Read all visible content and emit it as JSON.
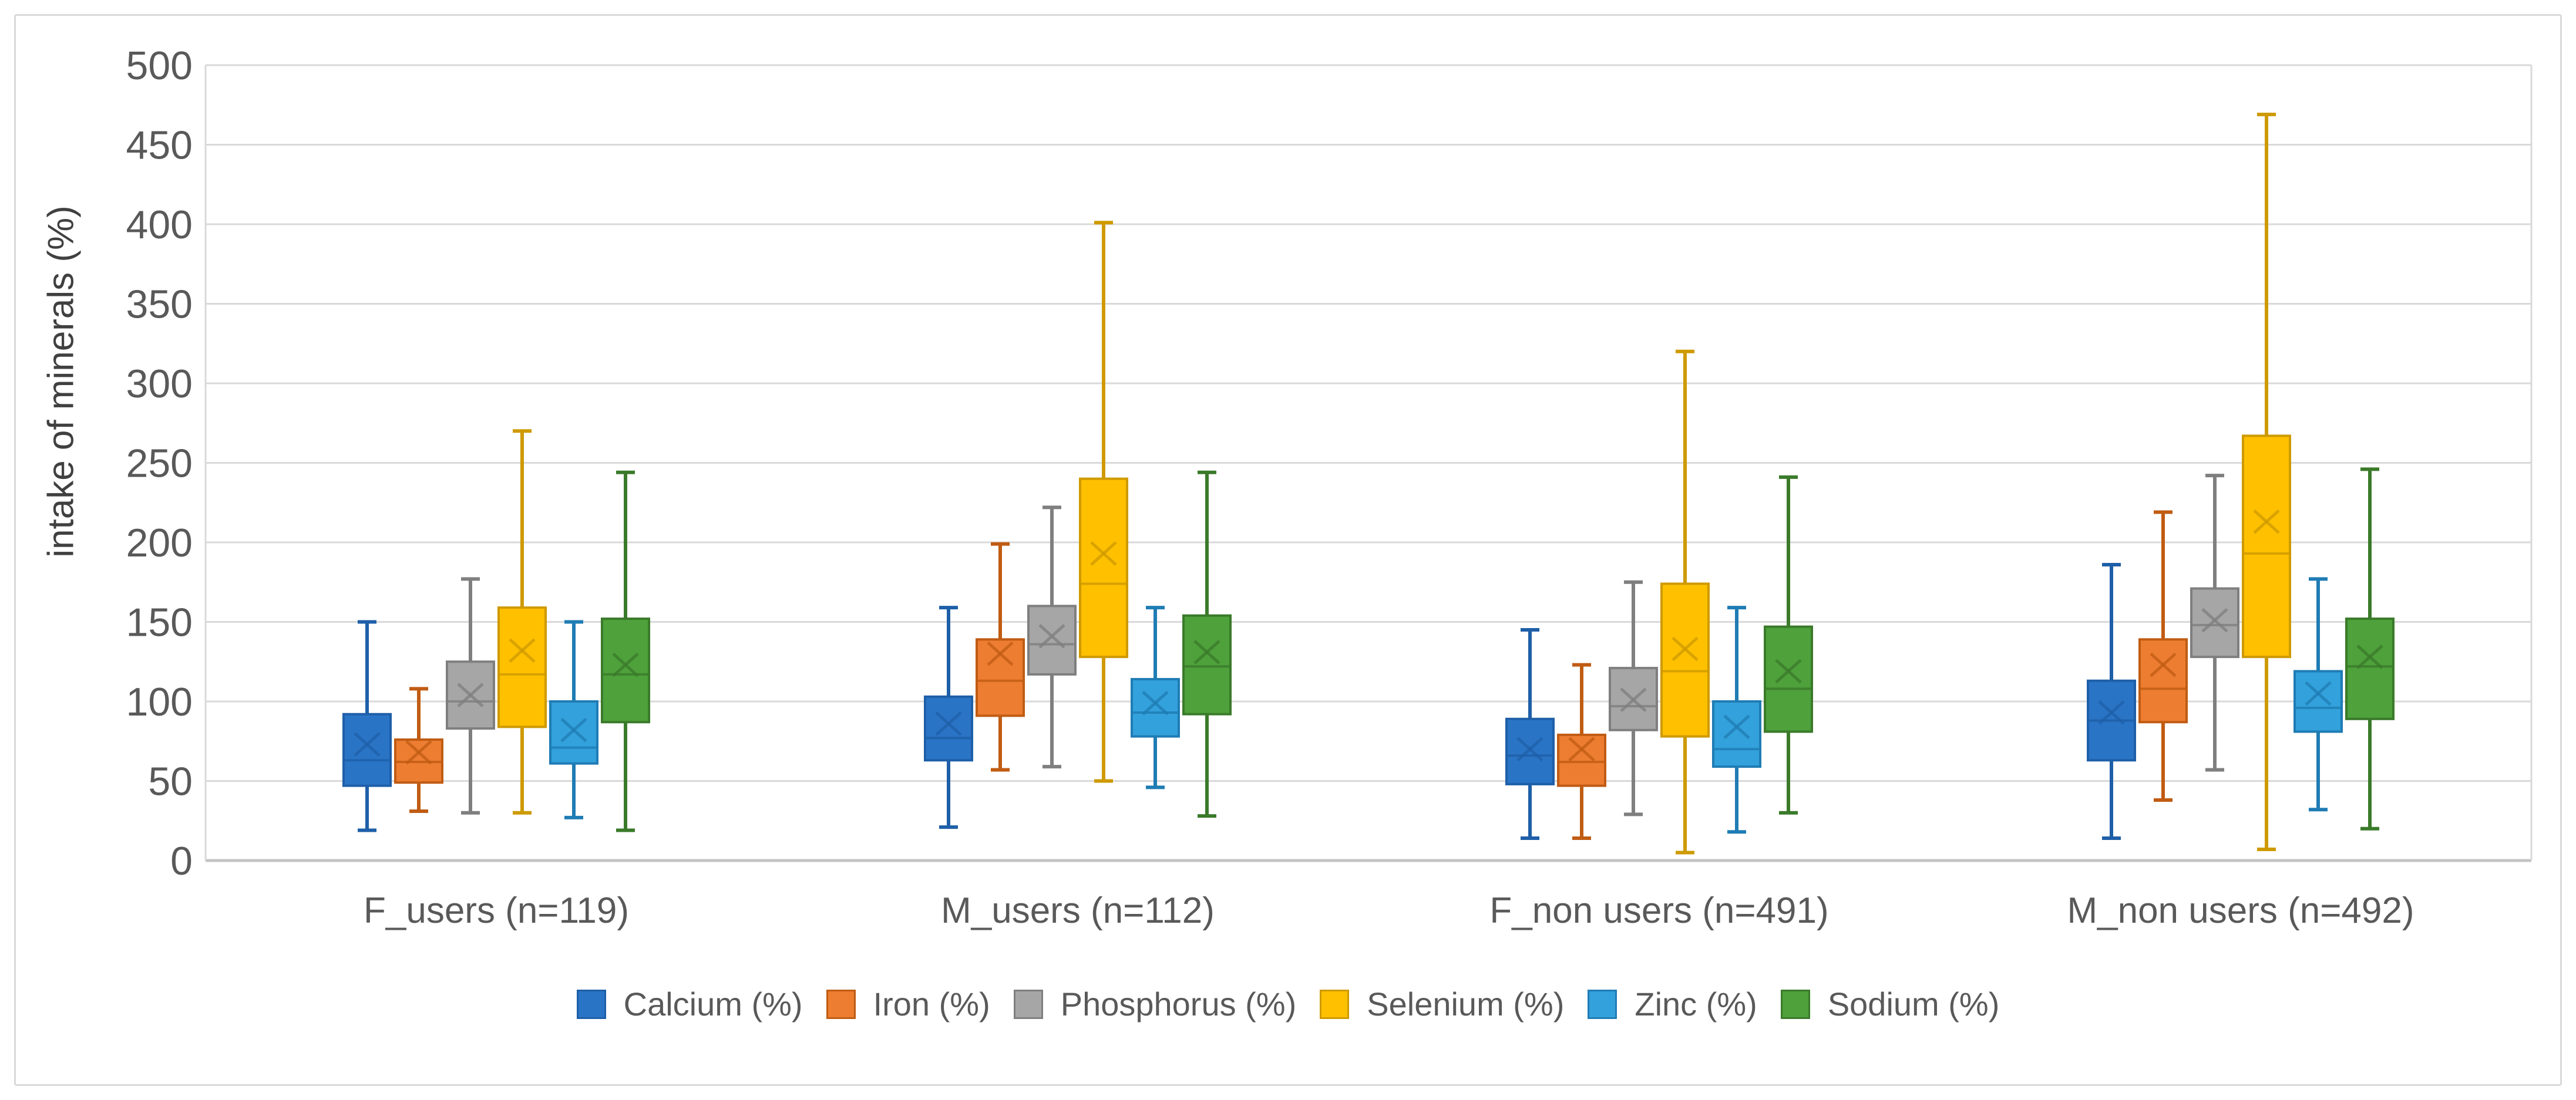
{
  "figure": {
    "background": "#FFFFFF",
    "border_color": "#D9D9D9"
  },
  "chart_data": {
    "type": "box",
    "title": "",
    "xlabel": "",
    "ylabel": "intake of minerals (%)",
    "ylim": [
      0,
      500
    ],
    "ytick_step": 50,
    "yticks": [
      0,
      50,
      100,
      150,
      200,
      250,
      300,
      350,
      400,
      450,
      500
    ],
    "grid": "horizontal",
    "gridline_color": "#D9D9D9",
    "axis_line_color": "#C3C3C3",
    "tick_label_color": "#595959",
    "category_label_color": "#595959",
    "ylabel_color": "#404040",
    "legend_position": "bottom",
    "box_format": [
      "min",
      "q1",
      "median",
      "mean",
      "q3",
      "max"
    ],
    "categories": [
      "F_users (n=119)",
      "M_users (n=112)",
      "F_non users (n=491)",
      "M_non users (n=492)"
    ],
    "series": [
      {
        "name": "Calcium (%)",
        "fill": "#2A74C6",
        "line": "#1E5FA8",
        "boxes": [
          [
            19,
            47,
            63,
            73,
            92,
            150
          ],
          [
            21,
            63,
            77,
            86,
            103,
            159
          ],
          [
            14,
            48,
            66,
            70,
            89,
            145
          ],
          [
            14,
            63,
            88,
            93,
            113,
            186
          ]
        ]
      },
      {
        "name": "Iron (%)",
        "fill": "#ED7D31",
        "line": "#C05C13",
        "boxes": [
          [
            31,
            49,
            62,
            68,
            76,
            108
          ],
          [
            57,
            91,
            113,
            130,
            139,
            199
          ],
          [
            14,
            47,
            62,
            70,
            79,
            123
          ],
          [
            38,
            87,
            108,
            123,
            139,
            219
          ]
        ]
      },
      {
        "name": "Phosphorus (%)",
        "fill": "#A6A6A6",
        "line": "#7F7F7F",
        "boxes": [
          [
            30,
            83,
            100,
            104,
            125,
            177
          ],
          [
            59,
            117,
            136,
            141,
            160,
            222
          ],
          [
            29,
            82,
            97,
            101,
            121,
            175
          ],
          [
            57,
            128,
            148,
            151,
            171,
            242
          ]
        ]
      },
      {
        "name": "Selenium (%)",
        "fill": "#FFC000",
        "line": "#CE9A00",
        "boxes": [
          [
            30,
            84,
            117,
            132,
            159,
            270
          ],
          [
            50,
            128,
            174,
            193,
            240,
            401
          ],
          [
            5,
            78,
            119,
            133,
            174,
            320
          ],
          [
            7,
            128,
            193,
            213,
            267,
            469
          ]
        ]
      },
      {
        "name": "Zinc (%)",
        "fill": "#33A1DB",
        "line": "#1F7CB4",
        "boxes": [
          [
            27,
            61,
            71,
            82,
            100,
            150
          ],
          [
            46,
            78,
            93,
            99,
            114,
            159
          ],
          [
            18,
            59,
            70,
            84,
            100,
            159
          ],
          [
            32,
            81,
            96,
            105,
            119,
            177
          ]
        ]
      },
      {
        "name": "Sodium (%)",
        "fill": "#4EA13B",
        "line": "#3A7A2A",
        "boxes": [
          [
            19,
            87,
            117,
            123,
            152,
            244
          ],
          [
            28,
            92,
            122,
            131,
            154,
            244
          ],
          [
            30,
            81,
            108,
            119,
            147,
            241
          ],
          [
            20,
            89,
            122,
            128,
            152,
            246
          ]
        ]
      }
    ]
  }
}
